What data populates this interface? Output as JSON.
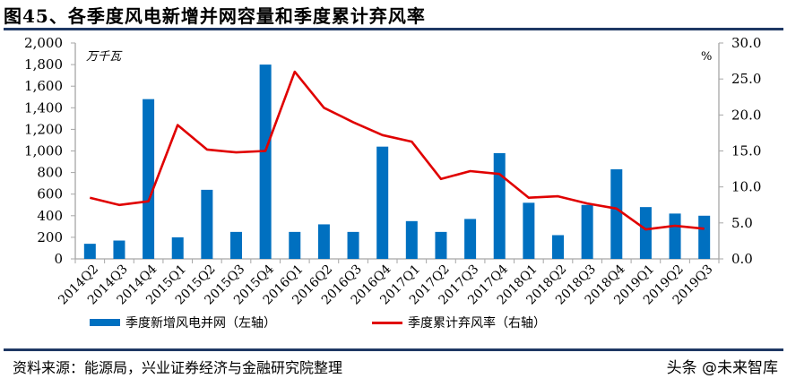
{
  "header": {
    "title": "图45、各季度风电新增并网容量和季度累计弃风率"
  },
  "footer": {
    "source": "资料来源：能源局，兴业证券经济与金融研究院整理",
    "watermark": "头条 @未来智库"
  },
  "colors": {
    "bar": "#0070c0",
    "line": "#e00000",
    "axis": "#a6a6a6",
    "rule": "#1f3864"
  },
  "chart_data": {
    "type": "bar+line",
    "title": "各季度风电新增并网容量和季度累计弃风率",
    "categories": [
      "2014Q2",
      "2014Q3",
      "2014Q4",
      "2015Q1",
      "2015Q2",
      "2015Q3",
      "2015Q4",
      "2016Q1",
      "2016Q2",
      "2016Q3",
      "2016Q4",
      "2017Q1",
      "2017Q2",
      "2017Q3",
      "2017Q4",
      "2018Q1",
      "2018Q2",
      "2018Q3",
      "2018Q4",
      "2019Q1",
      "2019Q2",
      "2019Q3"
    ],
    "series": [
      {
        "name": "季度新增风电并网（左轴）",
        "type": "bar",
        "axis": "left",
        "values": [
          140,
          170,
          1480,
          200,
          640,
          250,
          1800,
          250,
          320,
          250,
          1040,
          350,
          250,
          370,
          980,
          520,
          220,
          500,
          830,
          480,
          420,
          400
        ]
      },
      {
        "name": "季度累计弃风率（右轴）",
        "type": "line",
        "axis": "right",
        "values": [
          8.5,
          7.5,
          8.0,
          18.6,
          15.2,
          14.8,
          15.0,
          26.0,
          21.0,
          19.0,
          17.2,
          16.3,
          11.1,
          12.2,
          11.8,
          8.5,
          8.7,
          7.7,
          7.0,
          4.1,
          4.6,
          4.2
        ]
      }
    ],
    "left_axis": {
      "label": "万千瓦",
      "ylim": [
        0,
        2000
      ],
      "ticks": [
        "0",
        "200",
        "400",
        "600",
        "800",
        "1,000",
        "1,200",
        "1,400",
        "1,600",
        "1,800",
        "2,000"
      ]
    },
    "right_axis": {
      "label": "%",
      "ylim": [
        0,
        30
      ],
      "ticks": [
        "0.0",
        "5.0",
        "10.0",
        "15.0",
        "20.0",
        "25.0",
        "30.0"
      ]
    },
    "grid": false,
    "legend_position": "bottom"
  }
}
